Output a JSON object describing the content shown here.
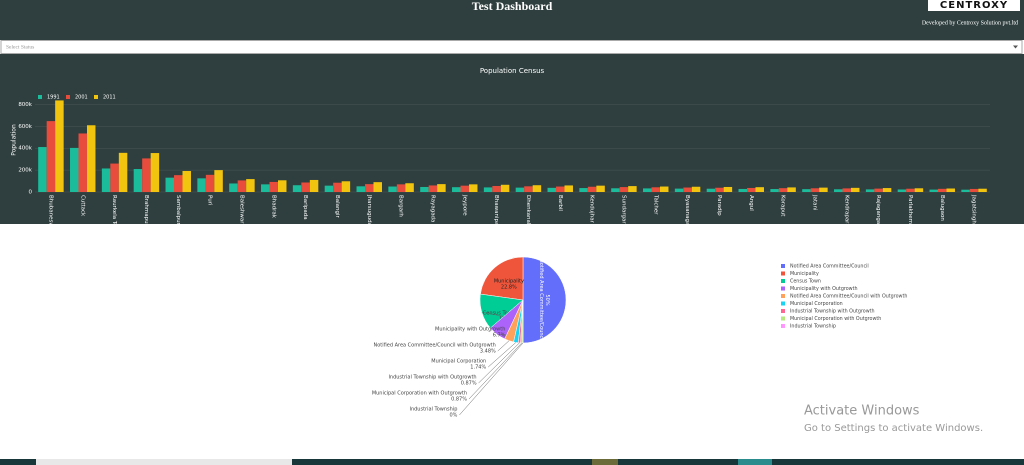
{
  "header": {
    "title": "Test Dashboard",
    "logo": "CENTROXY",
    "credit": "Developed by Centroxy Solution pvt.ltd"
  },
  "select": {
    "placeholder": "Select Status"
  },
  "chart_data": [
    {
      "type": "bar",
      "title": "Population Census",
      "y_label": "Population",
      "categories": [
        "Bhubaneswar",
        "Cuttack",
        "Raurkela Town",
        "Brahmapur",
        "Sambalpur",
        "Puri",
        "Baleshwar",
        "Bhadrak",
        "Baripada",
        "Balangir",
        "Jharsuguda",
        "Bargarh",
        "Rayagada",
        "Jeypore",
        "Bhawanipatna",
        "Dhenkanal",
        "Barbil",
        "Kendujhar",
        "Sundargarh",
        "Talcher",
        "Byasanagar",
        "Paradip",
        "Angul",
        "Koraput",
        "Jatani",
        "Kendrapara",
        "Rajagangapur",
        "Parlakhemundi",
        "Balugaon",
        "Jagatsinghapur"
      ],
      "series": [
        {
          "name": "1991",
          "color": "#1abc9c",
          "values": [
            411000,
            403000,
            215000,
            210000,
            131000,
            125000,
            78000,
            70000,
            62000,
            58000,
            52000,
            50000,
            46000,
            44000,
            42000,
            40000,
            38000,
            36000,
            34000,
            33000,
            31000,
            30000,
            28000,
            27000,
            26000,
            25000,
            24000,
            23000,
            22000,
            21000
          ]
        },
        {
          "name": "2001",
          "color": "#e74c3c",
          "values": [
            648000,
            535000,
            260000,
            307000,
            154000,
            157000,
            106000,
            92000,
            87000,
            85000,
            72000,
            70000,
            60000,
            58000,
            55000,
            52000,
            50000,
            48000,
            45000,
            43000,
            41000,
            39000,
            37000,
            35000,
            34000,
            33000,
            31000,
            30000,
            29000,
            28000
          ]
        },
        {
          "name": "2011",
          "color": "#f1c40f",
          "values": [
            837000,
            610000,
            358000,
            356000,
            192000,
            200000,
            118000,
            107000,
            110000,
            98000,
            90000,
            80000,
            72000,
            70000,
            66000,
            62000,
            60000,
            58000,
            54000,
            50000,
            48000,
            46000,
            44000,
            42000,
            40000,
            38000,
            36000,
            34000,
            32000,
            30000
          ]
        }
      ],
      "ylim": [
        0,
        850000
      ],
      "yticks": [
        0,
        {
          "value": 200000,
          "label": "200k"
        },
        {
          "value": 400000,
          "label": "400k"
        },
        {
          "value": 600000,
          "label": "600k"
        },
        {
          "value": 800000,
          "label": "800k"
        }
      ],
      "legend": "top-left"
    },
    {
      "type": "pie",
      "categories": [
        "Notified Area Committee/Council",
        "Municipality",
        "Census Town",
        "Municipality with Outgrowth",
        "Notified Area Committee/Council with Outgrowth",
        "Municipal Corporation",
        "Industrial Township with Outgrowth",
        "Municipal Corporation with Outgrowth",
        "Industrial Township"
      ],
      "values": [
        50,
        22.8,
        13.5,
        6.7,
        3.48,
        1.74,
        0.87,
        0.87,
        0
      ],
      "value_labels": [
        "50%",
        "22.8%",
        "13.5%",
        "6.7%",
        "3.48%",
        "1.74%",
        "0.87%",
        "0.87%",
        "0%"
      ],
      "colors": [
        "#636efa",
        "#ef553b",
        "#00cc96",
        "#ab63fa",
        "#ffa15a",
        "#19d3f3",
        "#ff6692",
        "#b6e880",
        "#ff97ff"
      ],
      "legend": "right"
    }
  ],
  "watermark": {
    "title": "Activate Windows",
    "subtitle": "Go to Settings to activate Windows."
  }
}
